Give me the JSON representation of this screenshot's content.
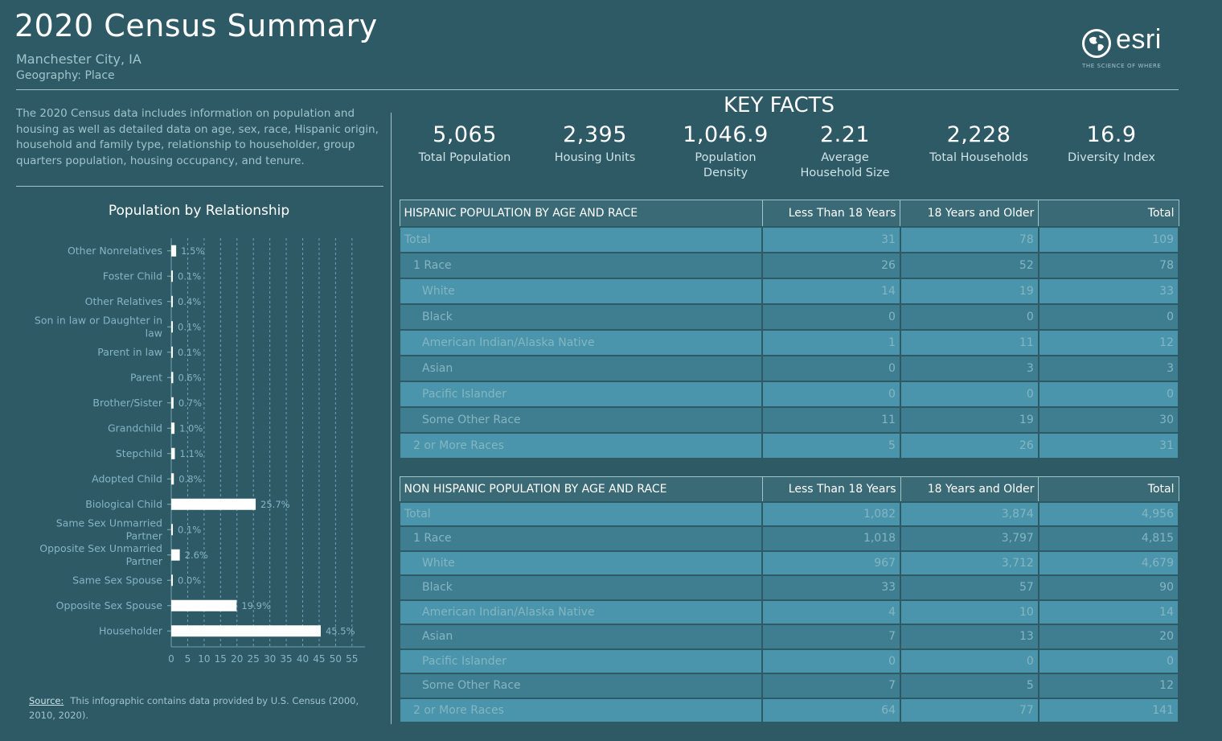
{
  "header": {
    "title": "2020 Census Summary",
    "location": "Manchester City, IA",
    "geography": "Geography: Place"
  },
  "logo": {
    "word": "esri",
    "tagline": "THE SCIENCE OF WHERE"
  },
  "intro": "The 2020 Census data includes information on population and housing as well as detailed data on age, sex, race, Hispanic origin, household and family type, relationship to householder, group quarters population, housing occupancy, and tenure.",
  "chart_title": "Population by Relationship",
  "chart_data": {
    "type": "bar",
    "orientation": "horizontal",
    "title": "Population by Relationship",
    "categories": [
      "Other Nonrelatives",
      "Foster Child",
      "Other Relatives",
      "Son in law or Daughter in law",
      "Parent in law",
      "Parent",
      "Brother/Sister",
      "Grandchild",
      "Stepchild",
      "Adopted Child",
      "Biological Child",
      "Same Sex Unmarried Partner",
      "Opposite Sex Unmarried Partner",
      "Same Sex Spouse",
      "Opposite Sex Spouse",
      "Householder"
    ],
    "category_lines": [
      [
        "Other Nonrelatives"
      ],
      [
        "Foster Child"
      ],
      [
        "Other Relatives"
      ],
      [
        "Son in law or Daughter in",
        "law"
      ],
      [
        "Parent in law"
      ],
      [
        "Parent"
      ],
      [
        "Brother/Sister"
      ],
      [
        "Grandchild"
      ],
      [
        "Stepchild"
      ],
      [
        "Adopted Child"
      ],
      [
        "Biological Child"
      ],
      [
        "Same Sex Unmarried",
        "Partner"
      ],
      [
        "Opposite Sex Unmarried",
        "Partner"
      ],
      [
        "Same Sex Spouse"
      ],
      [
        "Opposite Sex Spouse"
      ],
      [
        "Householder"
      ]
    ],
    "values": [
      1.5,
      0.1,
      0.4,
      0.1,
      0.1,
      0.6,
      0.7,
      1.0,
      1.1,
      0.8,
      25.7,
      0.1,
      2.6,
      0.0,
      19.9,
      45.5
    ],
    "value_labels": [
      "1.5%",
      "0.1%",
      "0.4%",
      "0.1%",
      "0.1%",
      "0.6%",
      "0.7%",
      "1.0%",
      "1.1%",
      "0.8%",
      "25.7%",
      "0.1%",
      "2.6%",
      "0.0%",
      "19.9%",
      "45.5%"
    ],
    "xlim": [
      0,
      57
    ],
    "xticks": [
      0,
      5,
      10,
      15,
      20,
      25,
      30,
      35,
      40,
      45,
      50,
      55
    ],
    "grid": true,
    "colors": {
      "bar": "#ffffff",
      "grid": "#6fa3b0",
      "label": "#84b5c2"
    }
  },
  "source": {
    "label": "Source:",
    "text": "This infographic contains data provided by U.S. Census (2000, 2010, 2020)."
  },
  "key_facts": {
    "title": "KEY FACTS",
    "items": [
      {
        "value": "5,065",
        "label": "Total Population"
      },
      {
        "value": "2,395",
        "label": "Housing Units"
      },
      {
        "value": "1,046.9",
        "label": "Population Density"
      },
      {
        "value": "2.21",
        "label": "Average Household Size"
      },
      {
        "value": "2,228",
        "label": "Total Households"
      },
      {
        "value": "16.9",
        "label": "Diversity Index"
      }
    ]
  },
  "hispanic_table": {
    "headers": [
      "HISPANIC POPULATION BY AGE AND RACE",
      "Less Than 18 Years",
      "18 Years and Older",
      "Total"
    ],
    "rows": [
      {
        "label": "Total",
        "indent": 0,
        "values": [
          "31",
          "78",
          "109"
        ]
      },
      {
        "label": "1 Race",
        "indent": 1,
        "values": [
          "26",
          "52",
          "78"
        ]
      },
      {
        "label": "White",
        "indent": 2,
        "values": [
          "14",
          "19",
          "33"
        ]
      },
      {
        "label": "Black",
        "indent": 2,
        "values": [
          "0",
          "0",
          "0"
        ]
      },
      {
        "label": "American Indian/Alaska Native",
        "indent": 2,
        "values": [
          "1",
          "11",
          "12"
        ]
      },
      {
        "label": "Asian",
        "indent": 2,
        "values": [
          "0",
          "3",
          "3"
        ]
      },
      {
        "label": "Pacific Islander",
        "indent": 2,
        "values": [
          "0",
          "0",
          "0"
        ]
      },
      {
        "label": "Some Other Race",
        "indent": 2,
        "values": [
          "11",
          "19",
          "30"
        ]
      },
      {
        "label": "2 or More Races",
        "indent": 1,
        "values": [
          "5",
          "26",
          "31"
        ]
      }
    ]
  },
  "nonhispanic_table": {
    "headers": [
      "NON HISPANIC POPULATION BY AGE AND RACE",
      "Less Than 18 Years",
      "18 Years and Older",
      "Total"
    ],
    "rows": [
      {
        "label": "Total",
        "indent": 0,
        "values": [
          "1,082",
          "3,874",
          "4,956"
        ]
      },
      {
        "label": "1 Race",
        "indent": 1,
        "values": [
          "1,018",
          "3,797",
          "4,815"
        ]
      },
      {
        "label": "White",
        "indent": 2,
        "values": [
          "967",
          "3,712",
          "4,679"
        ]
      },
      {
        "label": "Black",
        "indent": 2,
        "values": [
          "33",
          "57",
          "90"
        ]
      },
      {
        "label": "American Indian/Alaska Native",
        "indent": 2,
        "values": [
          "4",
          "10",
          "14"
        ]
      },
      {
        "label": "Asian",
        "indent": 2,
        "values": [
          "7",
          "13",
          "20"
        ]
      },
      {
        "label": "Pacific Islander",
        "indent": 2,
        "values": [
          "0",
          "0",
          "0"
        ]
      },
      {
        "label": "Some Other Race",
        "indent": 2,
        "values": [
          "7",
          "5",
          "12"
        ]
      },
      {
        "label": "2 or More Races",
        "indent": 1,
        "values": [
          "64",
          "77",
          "141"
        ]
      }
    ]
  }
}
